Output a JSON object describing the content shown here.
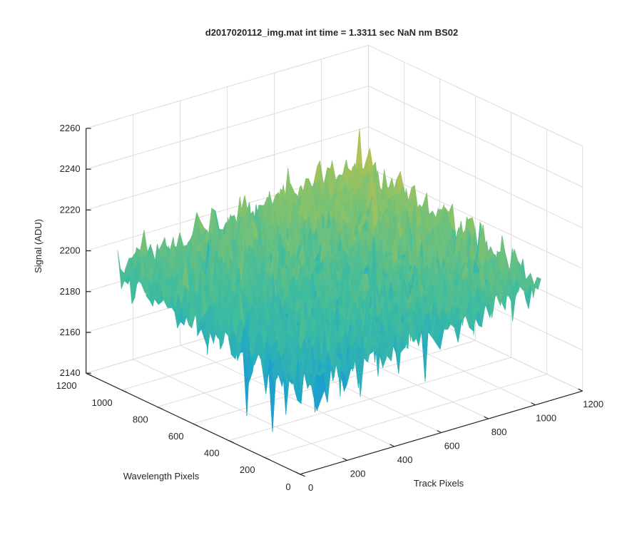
{
  "chart_data": {
    "type": "surface",
    "title": "d2017020112_img.mat int time = 1.3311 sec  NaN nm BS02",
    "xlabel": "Track Pixels",
    "ylabel": "Wavelength Pixels",
    "zlabel": "Signal (ADU)",
    "xlim": [
      0,
      1200
    ],
    "ylim": [
      0,
      1200
    ],
    "zlim": [
      2140,
      2260
    ],
    "xticks": [
      "0",
      "200",
      "400",
      "600",
      "800",
      "1000",
      "1200"
    ],
    "yticks": [
      "0",
      "200",
      "400",
      "600",
      "800",
      "1000",
      "1200"
    ],
    "zticks": [
      "2140",
      "2160",
      "2180",
      "2200",
      "2220",
      "2240",
      "2260"
    ],
    "data_extent": {
      "x": [
        1,
        1024
      ],
      "y": [
        1,
        1024
      ]
    },
    "surface_model": {
      "corner_means": {
        "x0_y0": 2183,
        "x1024_y0": 2200,
        "x0_y1024": 2198,
        "x1024_y1024": 2213
      },
      "noise_amplitude": 10,
      "min_observed": 2136,
      "max_observed": 2246
    },
    "colormap": [
      "#0f5ccf",
      "#1785e0",
      "#1fa7c8",
      "#3fbc9f",
      "#86c26b",
      "#c9c049",
      "#f5c42e"
    ],
    "grid": true
  }
}
